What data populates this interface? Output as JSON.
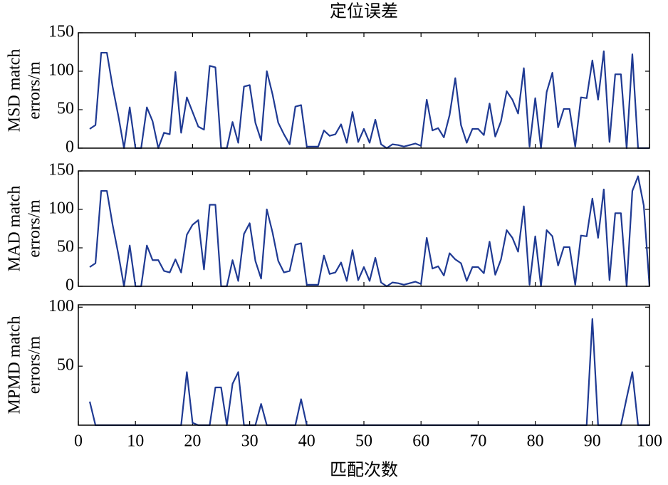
{
  "chart_data": [
    {
      "type": "line",
      "title": "定位误差",
      "ylabel": [
        "MSD match",
        "errors/m"
      ],
      "color": "#1f3a93",
      "x": [
        2,
        3,
        4,
        5,
        6,
        7,
        8,
        9,
        10,
        11,
        12,
        13,
        14,
        15,
        16,
        17,
        18,
        19,
        20,
        21,
        22,
        23,
        24,
        25,
        26,
        27,
        28,
        29,
        30,
        31,
        32,
        33,
        34,
        35,
        36,
        37,
        38,
        39,
        40,
        41,
        42,
        43,
        44,
        45,
        46,
        47,
        48,
        49,
        50,
        51,
        52,
        53,
        54,
        55,
        56,
        57,
        58,
        59,
        60,
        61,
        62,
        63,
        64,
        65,
        66,
        67,
        68,
        69,
        70,
        71,
        72,
        73,
        74,
        75,
        76,
        77,
        78,
        79,
        80,
        81,
        82,
        83,
        84,
        85,
        86,
        87,
        88,
        89,
        90,
        91,
        92,
        93,
        94,
        95,
        96,
        97,
        98,
        99,
        100
      ],
      "values": [
        25,
        30,
        124,
        124,
        80,
        42,
        0,
        53,
        0,
        0,
        53,
        35,
        0,
        20,
        18,
        99,
        20,
        66,
        47,
        28,
        24,
        107,
        105,
        0,
        0,
        34,
        7,
        80,
        82,
        33,
        10,
        100,
        70,
        33,
        18,
        5,
        54,
        56,
        2,
        2,
        2,
        23,
        16,
        18,
        31,
        7,
        47,
        8,
        25,
        7,
        37,
        5,
        0,
        5,
        4,
        2,
        4,
        6,
        3,
        63,
        23,
        26,
        14,
        43,
        91,
        30,
        7,
        25,
        25,
        17,
        58,
        15,
        35,
        74,
        63,
        45,
        104,
        2,
        65,
        0,
        73,
        98,
        27,
        51,
        51,
        2,
        66,
        65,
        114,
        63,
        126,
        8,
        96,
        96,
        0,
        122,
        0,
        0,
        0
      ],
      "xlim": [
        0,
        100
      ],
      "xticks": [
        0,
        10,
        20,
        30,
        40,
        50,
        60,
        70,
        80,
        90,
        100
      ],
      "ylim": [
        0,
        150
      ],
      "yticks": [
        0,
        50,
        100,
        150
      ]
    },
    {
      "type": "line",
      "ylabel": [
        "MAD match",
        "errors/m"
      ],
      "color": "#1f3a93",
      "x": [
        2,
        3,
        4,
        5,
        6,
        7,
        8,
        9,
        10,
        11,
        12,
        13,
        14,
        15,
        16,
        17,
        18,
        19,
        20,
        21,
        22,
        23,
        24,
        25,
        26,
        27,
        28,
        29,
        30,
        31,
        32,
        33,
        34,
        35,
        36,
        37,
        38,
        39,
        40,
        41,
        42,
        43,
        44,
        45,
        46,
        47,
        48,
        49,
        50,
        51,
        52,
        53,
        54,
        55,
        56,
        57,
        58,
        59,
        60,
        61,
        62,
        63,
        64,
        65,
        66,
        67,
        68,
        69,
        70,
        71,
        72,
        73,
        74,
        75,
        76,
        77,
        78,
        79,
        80,
        81,
        82,
        83,
        84,
        85,
        86,
        87,
        88,
        89,
        90,
        91,
        92,
        93,
        94,
        95,
        96,
        97,
        98,
        99,
        100
      ],
      "values": [
        25,
        30,
        124,
        124,
        80,
        42,
        0,
        53,
        0,
        0,
        53,
        34,
        34,
        20,
        18,
        35,
        18,
        67,
        80,
        86,
        22,
        106,
        106,
        0,
        0,
        34,
        7,
        68,
        82,
        33,
        10,
        100,
        70,
        33,
        18,
        20,
        54,
        56,
        2,
        2,
        2,
        40,
        16,
        18,
        31,
        7,
        47,
        8,
        25,
        7,
        37,
        5,
        0,
        5,
        4,
        2,
        4,
        6,
        3,
        63,
        23,
        26,
        14,
        43,
        35,
        30,
        7,
        25,
        25,
        17,
        58,
        15,
        35,
        73,
        63,
        45,
        104,
        2,
        65,
        0,
        73,
        65,
        27,
        51,
        51,
        2,
        66,
        65,
        114,
        63,
        126,
        8,
        95,
        95,
        0,
        124,
        143,
        105,
        0
      ],
      "xlim": [
        0,
        100
      ],
      "xticks": [
        0,
        10,
        20,
        30,
        40,
        50,
        60,
        70,
        80,
        90,
        100
      ],
      "ylim": [
        0,
        150
      ],
      "yticks": [
        0,
        50,
        100,
        150
      ]
    },
    {
      "type": "line",
      "ylabel": [
        "MPMD match",
        "errors/m"
      ],
      "xlabel": "匹配次数",
      "color": "#1f3a93",
      "x": [
        2,
        3,
        4,
        5,
        6,
        7,
        8,
        9,
        10,
        11,
        12,
        13,
        14,
        15,
        16,
        17,
        18,
        19,
        20,
        21,
        22,
        23,
        24,
        25,
        26,
        27,
        28,
        29,
        30,
        31,
        32,
        33,
        34,
        35,
        36,
        37,
        38,
        39,
        40,
        41,
        42,
        43,
        44,
        45,
        46,
        47,
        48,
        49,
        50,
        51,
        52,
        53,
        54,
        55,
        56,
        57,
        58,
        59,
        60,
        61,
        62,
        63,
        64,
        65,
        66,
        67,
        68,
        69,
        70,
        71,
        72,
        73,
        74,
        75,
        76,
        77,
        78,
        79,
        80,
        81,
        82,
        83,
        84,
        85,
        86,
        87,
        88,
        89,
        90,
        91,
        92,
        93,
        94,
        95,
        96,
        97,
        98,
        99,
        100
      ],
      "values": [
        20,
        0,
        0,
        0,
        0,
        0,
        0,
        0,
        0,
        0,
        0,
        0,
        0,
        0,
        0,
        0,
        0,
        45,
        2,
        0,
        0,
        0,
        32,
        32,
        0,
        35,
        45,
        0,
        0,
        0,
        18,
        0,
        0,
        0,
        0,
        0,
        0,
        22,
        0,
        0,
        0,
        0,
        0,
        0,
        0,
        0,
        0,
        0,
        0,
        0,
        0,
        0,
        0,
        0,
        0,
        0,
        0,
        0,
        0,
        0,
        0,
        0,
        0,
        0,
        0,
        0,
        0,
        0,
        0,
        0,
        0,
        0,
        0,
        0,
        0,
        0,
        0,
        0,
        0,
        0,
        0,
        0,
        0,
        0,
        0,
        0,
        0,
        0,
        90,
        0,
        0,
        0,
        0,
        0,
        23,
        45,
        0,
        0,
        0
      ],
      "xlim": [
        0,
        100
      ],
      "xticks": [
        0,
        10,
        20,
        30,
        40,
        50,
        60,
        70,
        80,
        90,
        100
      ],
      "ylim": [
        0,
        102
      ],
      "yticks": [
        50,
        100
      ]
    }
  ]
}
